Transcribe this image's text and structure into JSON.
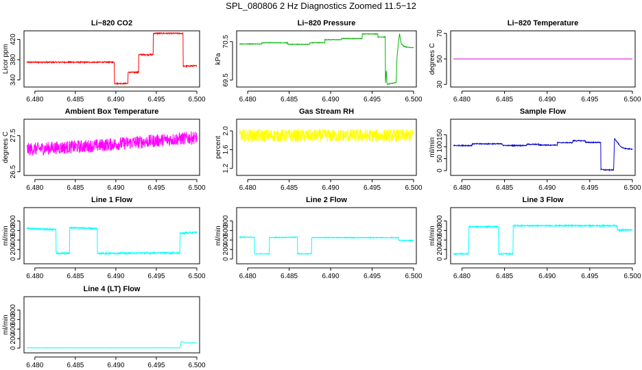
{
  "page_title": "SPL_080806  2 Hz Diagnostics Zoomed 11.5−12",
  "chart_data": [
    {
      "type": "line",
      "title": "Li−820 CO2",
      "ylabel": "Licor ppm",
      "color": "#ff0000",
      "xlim": [
        6.479,
        6.5
      ],
      "xticks": [
        6.48,
        6.485,
        6.49,
        6.495,
        6.5
      ],
      "xtick_labels": [
        "6.480",
        "6.485",
        "6.490",
        "6.495",
        "6.500"
      ],
      "ylim": [
        326,
        437
      ],
      "yticks": [
        340,
        380,
        420
      ],
      "ytick_labels": [
        "340",
        "380",
        "420"
      ],
      "noise": 1.2,
      "series": [
        {
          "x": [
            6.479,
            6.4898,
            6.4898,
            6.4915,
            6.4915,
            6.4928,
            6.4928,
            6.4946,
            6.4946,
            6.4983,
            6.4983,
            6.5
          ],
          "y": [
            375,
            375,
            333,
            333,
            355,
            355,
            390,
            390,
            432,
            432,
            367,
            368
          ]
        }
      ]
    },
    {
      "type": "line",
      "title": "Li−820 Pressure",
      "ylabel": "kPa",
      "color": "#00b000",
      "xlim": [
        6.479,
        6.5
      ],
      "xticks": [
        6.48,
        6.485,
        6.49,
        6.495,
        6.5
      ],
      "xtick_labels": [
        "6.480",
        "6.485",
        "6.490",
        "6.495",
        "6.500"
      ],
      "ylim": [
        69.32,
        70.78
      ],
      "yticks": [
        69.5,
        70.5
      ],
      "ytick_labels": [
        "69.5",
        "70.5"
      ],
      "noise": 0.008,
      "series": [
        {
          "x": [
            6.479,
            6.4817,
            6.4817,
            6.4848,
            6.4848,
            6.4875,
            6.4875,
            6.4893,
            6.4893,
            6.4913,
            6.4913,
            6.4938,
            6.4938,
            6.4957,
            6.4957,
            6.4966,
            6.4966,
            6.4967,
            6.4968,
            6.497,
            6.4975,
            6.4979,
            6.498,
            6.4983,
            6.4985,
            6.4988,
            6.4993,
            6.5
          ],
          "y": [
            70.44,
            70.44,
            70.47,
            70.47,
            70.43,
            70.43,
            70.47,
            70.47,
            70.55,
            70.55,
            70.58,
            70.58,
            70.7,
            70.7,
            70.62,
            70.62,
            69.4,
            69.75,
            69.38,
            69.4,
            69.42,
            69.44,
            70.1,
            70.72,
            70.45,
            70.38,
            70.35,
            70.34
          ]
        }
      ]
    },
    {
      "type": "line",
      "title": "Li−820 Temperature",
      "ylabel": "degrees C",
      "color": "#d000d0",
      "xlim": [
        6.479,
        6.5
      ],
      "xticks": [
        6.48,
        6.485,
        6.49,
        6.495,
        6.5
      ],
      "xtick_labels": [
        "6.480",
        "6.485",
        "6.490",
        "6.495",
        "6.500"
      ],
      "ylim": [
        28,
        72
      ],
      "yticks": [
        30,
        50,
        70
      ],
      "ytick_labels": [
        "30",
        "50",
        "70"
      ],
      "noise": 0,
      "series": [
        {
          "x": [
            6.479,
            6.5
          ],
          "y": [
            50,
            50
          ]
        }
      ]
    },
    {
      "type": "line",
      "title": "Ambient Box Temperature",
      "ylabel": "degrees C",
      "color": "#ff00ff",
      "xlim": [
        6.479,
        6.5
      ],
      "xticks": [
        6.48,
        6.485,
        6.49,
        6.495,
        6.5
      ],
      "xtick_labels": [
        "6.480",
        "6.485",
        "6.490",
        "6.495",
        "6.500"
      ],
      "ylim": [
        26.4,
        27.95
      ],
      "yticks": [
        26.5,
        27.5
      ],
      "ytick_labels": [
        "26.5",
        "27.5"
      ],
      "noise": 0.18,
      "series": [
        {
          "x": [
            6.479,
            6.4875,
            6.5
          ],
          "y": [
            27.12,
            27.22,
            27.45
          ]
        }
      ]
    },
    {
      "type": "line",
      "title": "Gas Stream RH",
      "ylabel": "percent",
      "color": "#ffff00",
      "xlim": [
        6.479,
        6.5
      ],
      "xticks": [
        6.48,
        6.485,
        6.49,
        6.495,
        6.5
      ],
      "xtick_labels": [
        "6.480",
        "6.485",
        "6.490",
        "6.495",
        "6.500"
      ],
      "ylim": [
        1.05,
        2.25
      ],
      "yticks": [
        1.2,
        1.6,
        2.0
      ],
      "ytick_labels": [
        "1.2",
        "1.6",
        "2.0"
      ],
      "noise": 0.14,
      "series": [
        {
          "x": [
            6.479,
            6.5
          ],
          "y": [
            1.9,
            1.9
          ]
        }
      ]
    },
    {
      "type": "line",
      "title": "Sample Flow",
      "ylabel": "ml/min",
      "color": "#0000cc",
      "xlim": [
        6.479,
        6.5
      ],
      "xticks": [
        6.48,
        6.485,
        6.49,
        6.495,
        6.5
      ],
      "xtick_labels": [
        "6.480",
        "6.485",
        "6.490",
        "6.495",
        "6.500"
      ],
      "ylim": [
        -20,
        215
      ],
      "yticks": [
        0,
        50,
        100,
        150
      ],
      "ytick_labels": [
        "0",
        "50",
        "100",
        "150"
      ],
      "noise": 2,
      "series": [
        {
          "x": [
            6.479,
            6.4812,
            6.4812,
            6.4848,
            6.4848,
            6.4876,
            6.4876,
            6.489,
            6.489,
            6.4912,
            6.4912,
            6.493,
            6.493,
            6.4945,
            6.4945,
            6.4963,
            6.4963,
            6.4968,
            6.4978,
            6.4979,
            6.4982,
            6.4986,
            6.4992,
            6.5
          ],
          "y": [
            105,
            105,
            112,
            112,
            105,
            105,
            110,
            110,
            107,
            107,
            117,
            117,
            125,
            125,
            118,
            118,
            5,
            3,
            3,
            135,
            120,
            100,
            92,
            90
          ]
        }
      ]
    },
    {
      "type": "line",
      "title": "Line 1 Flow",
      "ylabel": "ml/min",
      "color": "#00ffff",
      "xlim": [
        6.479,
        6.5
      ],
      "xticks": [
        6.48,
        6.485,
        6.49,
        6.495,
        6.5
      ],
      "xtick_labels": [
        "6.480",
        "6.485",
        "6.490",
        "6.495",
        "6.500"
      ],
      "ylim": [
        -100,
        1080
      ],
      "yticks": [
        0,
        200,
        400,
        600,
        800
      ],
      "ytick_labels": [
        "0",
        "200",
        "400",
        "600",
        "800"
      ],
      "noise": 18,
      "series": [
        {
          "x": [
            6.479,
            6.4826,
            6.4826,
            6.4843,
            6.4843,
            6.4877,
            6.4877,
            6.4979,
            6.4979,
            6.5
          ],
          "y": [
            640,
            620,
            120,
            120,
            660,
            640,
            120,
            130,
            540,
            560
          ]
        }
      ]
    },
    {
      "type": "line",
      "title": "Line 2 Flow",
      "ylabel": "ml/min",
      "color": "#00ffff",
      "xlim": [
        6.479,
        6.5
      ],
      "xticks": [
        6.48,
        6.485,
        6.49,
        6.495,
        6.5
      ],
      "xtick_labels": [
        "6.480",
        "6.485",
        "6.490",
        "6.495",
        "6.500"
      ],
      "ylim": [
        -100,
        1080
      ],
      "yticks": [
        0,
        200,
        400,
        600,
        800
      ],
      "ytick_labels": [
        "0",
        "200",
        "400",
        "600",
        "800"
      ],
      "noise": 8,
      "series": [
        {
          "x": [
            6.479,
            6.4808,
            6.4808,
            6.4826,
            6.4826,
            6.486,
            6.486,
            6.4877,
            6.4877,
            6.4982,
            6.4982,
            6.5
          ],
          "y": [
            460,
            460,
            110,
            110,
            450,
            460,
            110,
            110,
            450,
            450,
            390,
            390
          ]
        }
      ]
    },
    {
      "type": "line",
      "title": "Line 3 Flow",
      "ylabel": "ml/min",
      "color": "#00ffff",
      "xlim": [
        6.479,
        6.5
      ],
      "xticks": [
        6.48,
        6.485,
        6.49,
        6.495,
        6.5
      ],
      "xtick_labels": [
        "6.480",
        "6.485",
        "6.490",
        "6.495",
        "6.500"
      ],
      "ylim": [
        -100,
        1080
      ],
      "yticks": [
        0,
        200,
        400,
        600,
        800
      ],
      "ytick_labels": [
        "0",
        "200",
        "400",
        "600",
        "800"
      ],
      "noise": 14,
      "series": [
        {
          "x": [
            6.479,
            6.4808,
            6.4808,
            6.4843,
            6.4843,
            6.486,
            6.486,
            6.4982,
            6.4982,
            6.5
          ],
          "y": [
            110,
            110,
            680,
            680,
            110,
            110,
            700,
            700,
            610,
            610
          ]
        }
      ]
    },
    {
      "type": "line",
      "title": "Line 4 (LT) Flow",
      "ylabel": "ml/min",
      "color": "#00ffff",
      "xlim": [
        6.479,
        6.5
      ],
      "xticks": [
        6.48,
        6.485,
        6.49,
        6.495,
        6.5
      ],
      "xtick_labels": [
        "6.480",
        "6.485",
        "6.490",
        "6.495",
        "6.500"
      ],
      "ylim": [
        -100,
        1080
      ],
      "yticks": [
        0,
        200,
        400,
        600,
        800
      ],
      "ytick_labels": [
        "0",
        "200",
        "400",
        "600",
        "800"
      ],
      "noise": 2,
      "series": [
        {
          "x": [
            6.479,
            6.4979,
            6.4981,
            6.4984,
            6.5
          ],
          "y": [
            5,
            5,
            150,
            110,
            110
          ]
        }
      ]
    }
  ]
}
